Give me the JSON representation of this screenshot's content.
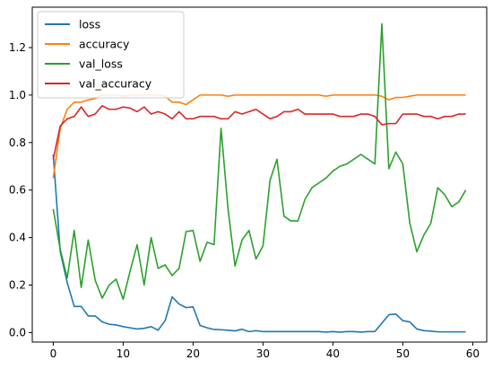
{
  "chart_data": {
    "type": "line",
    "title": "",
    "xlabel": "",
    "ylabel": "",
    "xlim": [
      -3,
      62
    ],
    "ylim": [
      -0.04,
      1.37
    ],
    "xticks": [
      0,
      10,
      20,
      30,
      40,
      50,
      60
    ],
    "yticks": [
      0.0,
      0.2,
      0.4,
      0.6,
      0.8,
      1.0,
      1.2
    ],
    "xtick_labels": [
      "0",
      "10",
      "20",
      "30",
      "40",
      "50",
      "60"
    ],
    "ytick_labels": [
      "0.0",
      "0.2",
      "0.4",
      "0.6",
      "0.8",
      "1.0",
      "1.2"
    ],
    "grid": false,
    "legend_position": "top-left",
    "x": [
      0,
      1,
      2,
      3,
      4,
      5,
      6,
      7,
      8,
      9,
      10,
      11,
      12,
      13,
      14,
      15,
      16,
      17,
      18,
      19,
      20,
      21,
      22,
      23,
      24,
      25,
      26,
      27,
      28,
      29,
      30,
      31,
      32,
      33,
      34,
      35,
      36,
      37,
      38,
      39,
      40,
      41,
      42,
      43,
      44,
      45,
      46,
      47,
      48,
      49,
      50,
      51,
      52,
      53,
      54,
      55,
      56,
      57,
      58,
      59
    ],
    "series": [
      {
        "name": "loss",
        "color": "#1f77b4",
        "values": [
          0.75,
          0.34,
          0.21,
          0.11,
          0.11,
          0.07,
          0.07,
          0.045,
          0.035,
          0.032,
          0.025,
          0.02,
          0.015,
          0.018,
          0.025,
          0.01,
          0.05,
          0.15,
          0.12,
          0.105,
          0.108,
          0.03,
          0.02,
          0.013,
          0.012,
          0.01,
          0.007,
          0.014,
          0.004,
          0.008,
          0.004,
          0.004,
          0.004,
          0.004,
          0.004,
          0.004,
          0.004,
          0.004,
          0.004,
          0.002,
          0.004,
          0.002,
          0.004,
          0.004,
          0.002,
          0.004,
          0.004,
          0.04,
          0.075,
          0.078,
          0.05,
          0.045,
          0.015,
          0.008,
          0.006,
          0.003,
          0.003,
          0.003,
          0.003,
          0.003
        ]
      },
      {
        "name": "accuracy",
        "color": "#ff7f0e",
        "values": [
          0.65,
          0.86,
          0.94,
          0.97,
          0.97,
          0.98,
          0.985,
          1.0,
          1.0,
          1.0,
          0.995,
          1.0,
          1.0,
          1.0,
          1.0,
          1.0,
          0.995,
          0.97,
          0.97,
          0.96,
          0.98,
          1.0,
          1.0,
          1.0,
          1.0,
          0.995,
          1.0,
          1.0,
          1.0,
          1.0,
          1.0,
          1.0,
          1.0,
          1.0,
          1.0,
          1.0,
          1.0,
          1.0,
          1.0,
          0.995,
          1.0,
          1.0,
          1.0,
          1.0,
          1.0,
          1.0,
          1.0,
          0.995,
          0.98,
          0.99,
          0.99,
          0.995,
          1.0,
          1.0,
          1.0,
          1.0,
          1.0,
          1.0,
          1.0,
          1.0
        ]
      },
      {
        "name": "val_loss",
        "color": "#2ca02c",
        "values": [
          0.52,
          0.35,
          0.23,
          0.43,
          0.19,
          0.39,
          0.22,
          0.145,
          0.2,
          0.225,
          0.14,
          0.26,
          0.37,
          0.2,
          0.4,
          0.27,
          0.285,
          0.24,
          0.27,
          0.425,
          0.43,
          0.3,
          0.38,
          0.37,
          0.86,
          0.52,
          0.28,
          0.39,
          0.43,
          0.31,
          0.365,
          0.64,
          0.73,
          0.49,
          0.47,
          0.47,
          0.56,
          0.61,
          0.63,
          0.65,
          0.68,
          0.7,
          0.71,
          0.73,
          0.75,
          0.73,
          0.71,
          1.3,
          0.69,
          0.76,
          0.71,
          0.46,
          0.34,
          0.41,
          0.46,
          0.61,
          0.58,
          0.53,
          0.55,
          0.6
        ]
      },
      {
        "name": "val_accuracy",
        "color": "#d62728",
        "values": [
          0.73,
          0.87,
          0.9,
          0.91,
          0.95,
          0.91,
          0.92,
          0.955,
          0.94,
          0.94,
          0.95,
          0.945,
          0.93,
          0.95,
          0.92,
          0.93,
          0.92,
          0.9,
          0.93,
          0.9,
          0.9,
          0.91,
          0.91,
          0.91,
          0.9,
          0.9,
          0.93,
          0.92,
          0.93,
          0.94,
          0.92,
          0.9,
          0.91,
          0.93,
          0.93,
          0.94,
          0.92,
          0.92,
          0.92,
          0.92,
          0.92,
          0.91,
          0.91,
          0.91,
          0.92,
          0.92,
          0.91,
          0.875,
          0.88,
          0.88,
          0.92,
          0.92,
          0.92,
          0.91,
          0.91,
          0.9,
          0.91,
          0.91,
          0.92,
          0.92
        ]
      }
    ]
  }
}
